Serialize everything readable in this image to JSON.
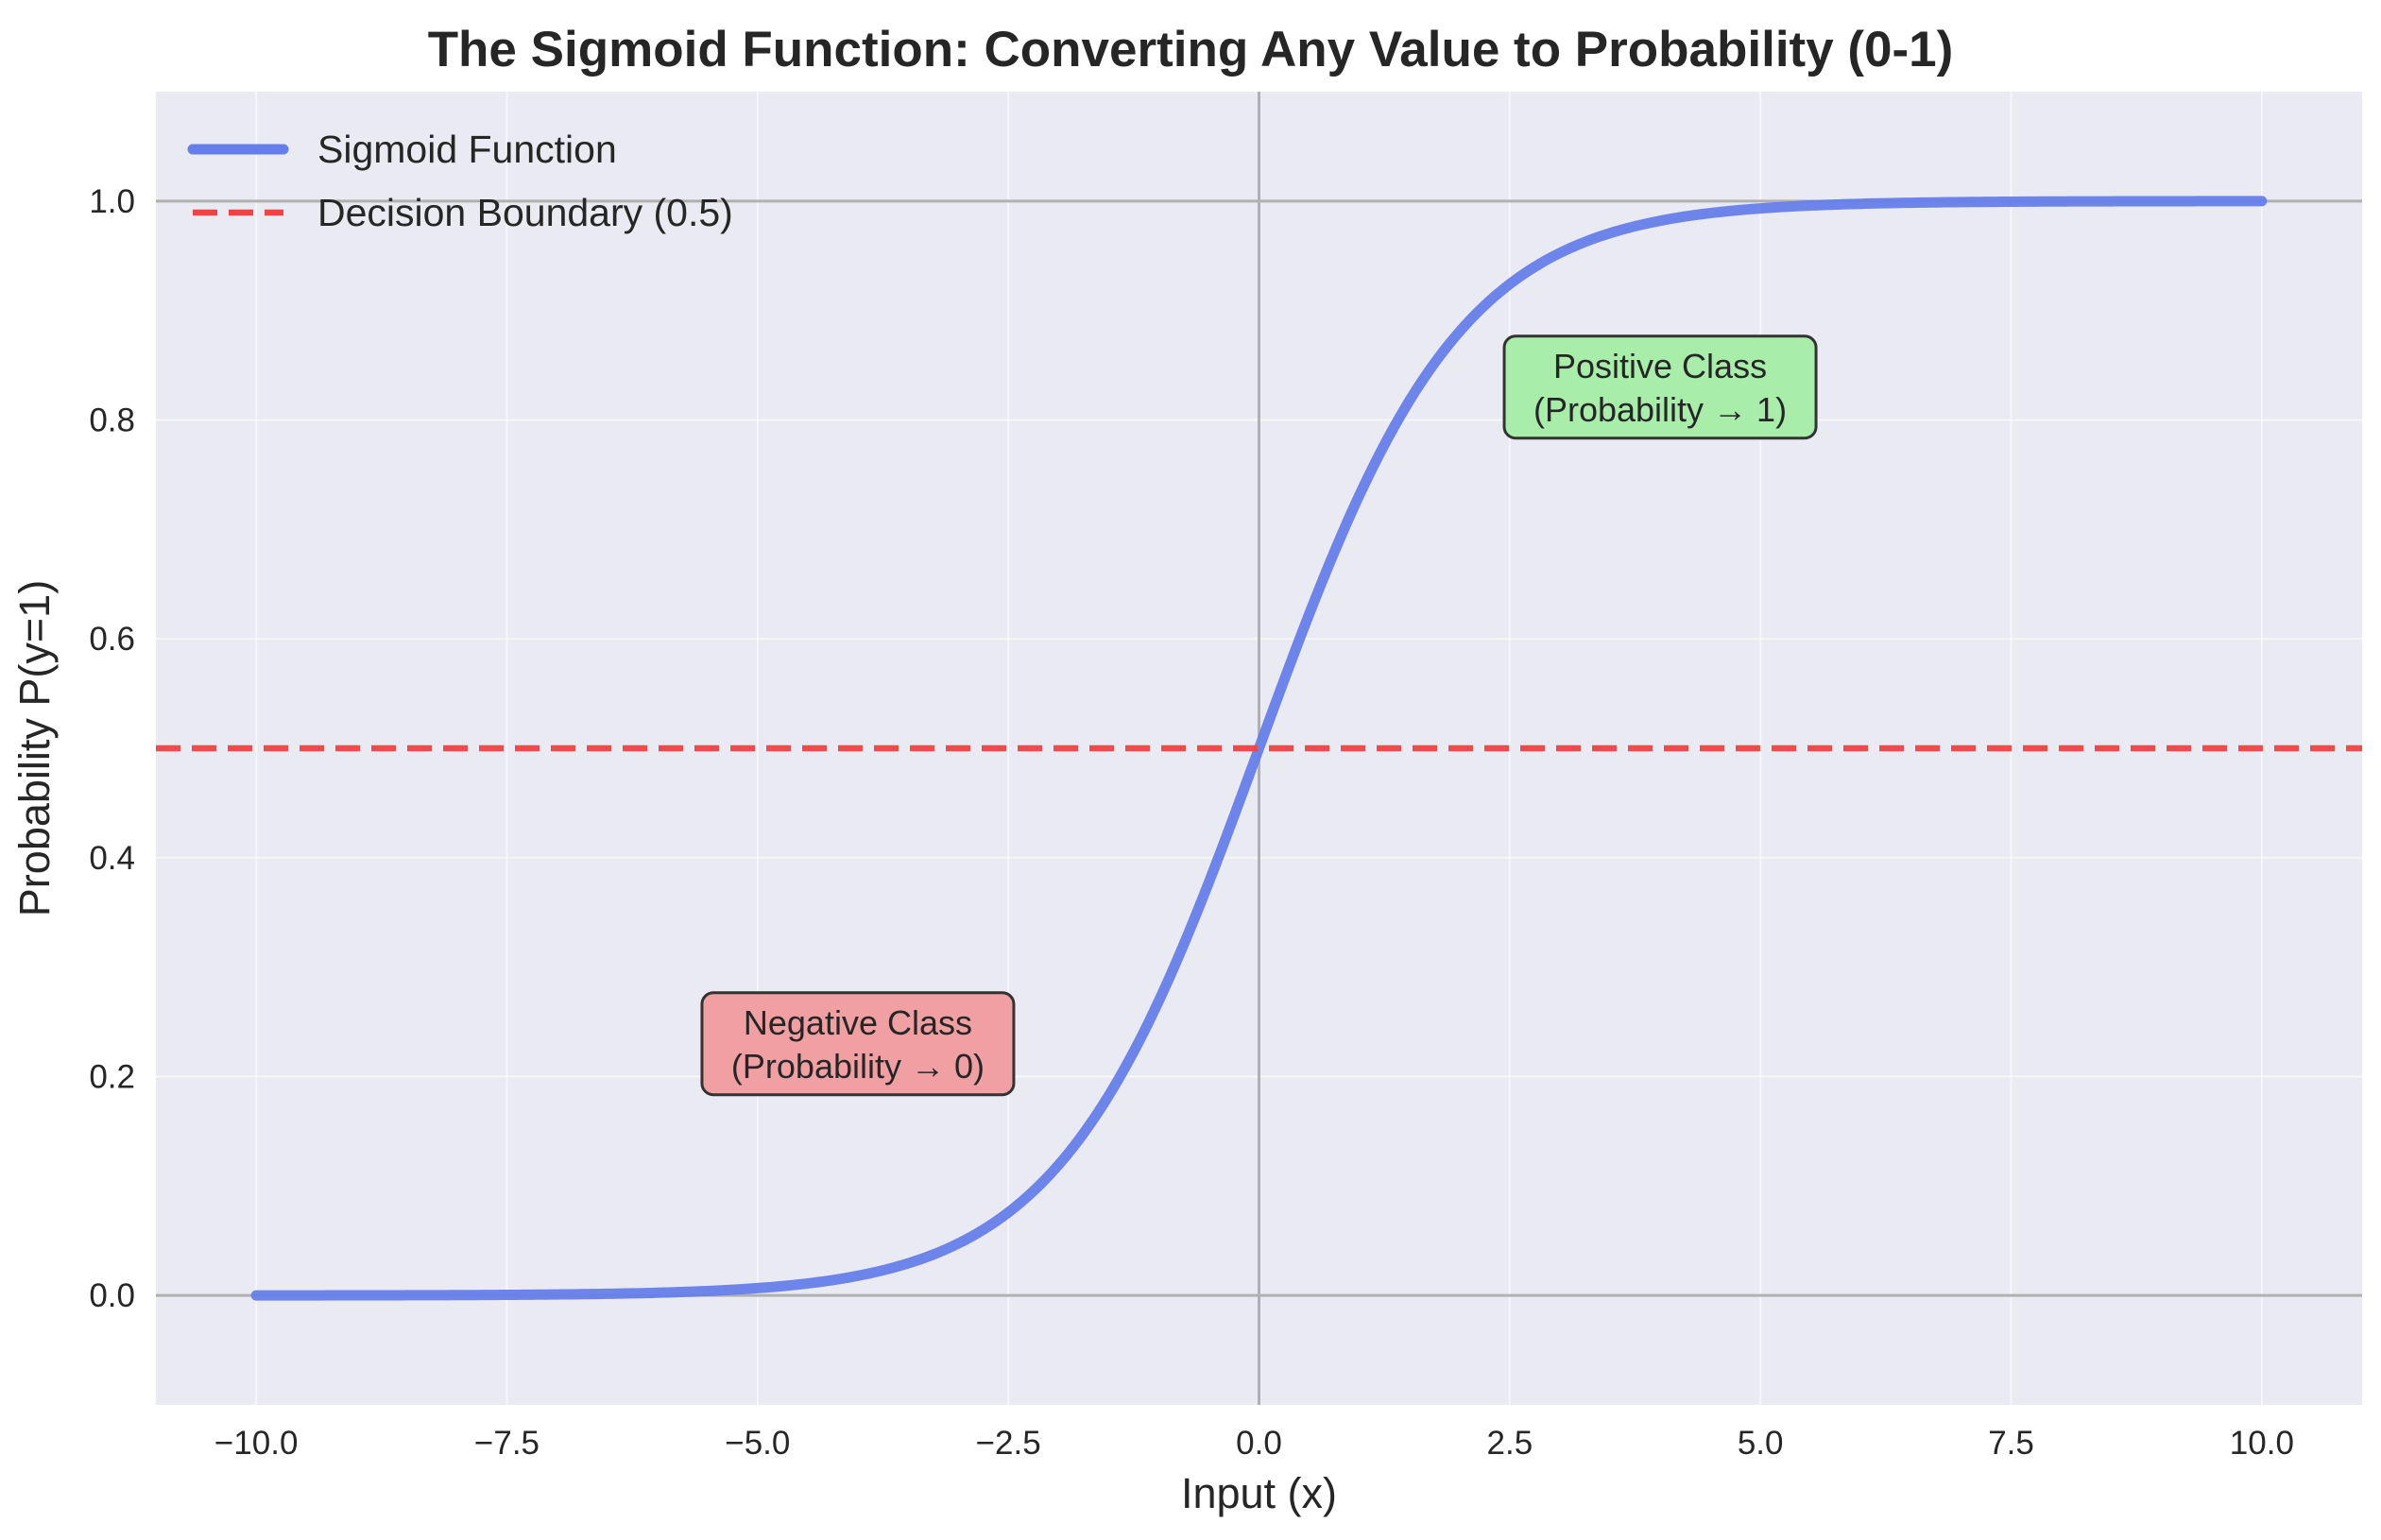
{
  "chart_data": {
    "type": "line",
    "title": "The Sigmoid Function: Converting Any Value to Probability (0-1)",
    "xlabel": "Input (x)",
    "ylabel": "Probability P(y=1)",
    "xlim": [
      -11,
      11
    ],
    "ylim": [
      -0.1,
      1.1
    ],
    "x_ticks": [
      -10,
      -7.5,
      -5,
      -2.5,
      0,
      2.5,
      5,
      7.5,
      10
    ],
    "x_tick_labels": [
      "−10.0",
      "−7.5",
      "−5.0",
      "−2.5",
      "0.0",
      "2.5",
      "5.0",
      "7.5",
      "10.0"
    ],
    "y_ticks": [
      0,
      0.2,
      0.4,
      0.6,
      0.8,
      1.0
    ],
    "y_tick_labels": [
      "0.0",
      "0.2",
      "0.4",
      "0.6",
      "0.8",
      "1.0"
    ],
    "grid": true,
    "legend_placement": "upper-left",
    "background_color": "#eaeaf2",
    "series": [
      {
        "name": "Sigmoid Function",
        "function": "sigmoid",
        "x_range": [
          -10,
          10
        ],
        "color": "#667eea",
        "style": "solid",
        "points": [
          [
            -10,
            0.0
          ],
          [
            -7.5,
            0.0006
          ],
          [
            -5,
            0.0067
          ],
          [
            -4,
            0.018
          ],
          [
            -3,
            0.0474
          ],
          [
            -2.5,
            0.0759
          ],
          [
            -2,
            0.1192
          ],
          [
            -1.5,
            0.1824
          ],
          [
            -1,
            0.2689
          ],
          [
            -0.5,
            0.3775
          ],
          [
            0,
            0.5
          ],
          [
            0.5,
            0.6225
          ],
          [
            1,
            0.7311
          ],
          [
            1.5,
            0.8176
          ],
          [
            2,
            0.8808
          ],
          [
            2.5,
            0.9241
          ],
          [
            3,
            0.9526
          ],
          [
            4,
            0.982
          ],
          [
            5,
            0.9933
          ],
          [
            7.5,
            0.9994
          ],
          [
            10,
            1.0
          ]
        ]
      },
      {
        "name": "Decision Boundary (0.5)",
        "y": 0.5,
        "color": "#ef4444",
        "style": "dashed"
      }
    ],
    "reference_lines": [
      {
        "axis": "x",
        "value": 0,
        "color": "#b0b0b0"
      },
      {
        "axis": "y",
        "value": 0,
        "color": "#b0b0b0"
      },
      {
        "axis": "y",
        "value": 1,
        "color": "#b0b0b0"
      }
    ],
    "annotations": [
      {
        "lines": [
          "Negative Class",
          "(Probability → 0)"
        ],
        "x": -4,
        "y": 0.23,
        "bg": "#f0a0a2"
      },
      {
        "lines": [
          "Positive Class",
          "(Probability → 1)"
        ],
        "x": 4,
        "y": 0.83,
        "bg": "#a8eeaa"
      }
    ]
  }
}
